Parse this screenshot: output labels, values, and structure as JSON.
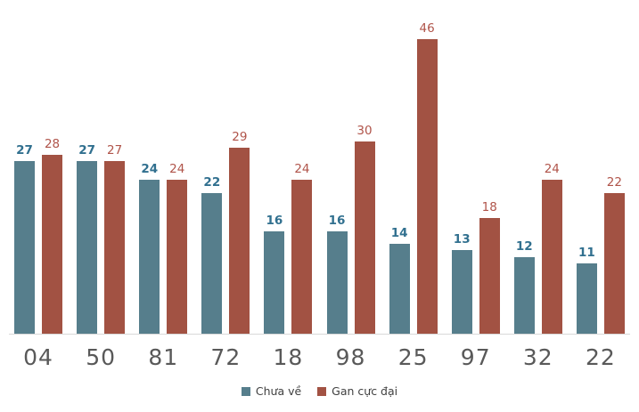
{
  "chart_data": {
    "type": "bar",
    "title": "",
    "xlabel": "",
    "ylabel": "",
    "categories": [
      "04",
      "50",
      "81",
      "72",
      "18",
      "98",
      "25",
      "97",
      "32",
      "22"
    ],
    "series": [
      {
        "name": "Chưa về",
        "bar_color": "#567E8C",
        "label_color": "#31708F",
        "values": [
          27,
          27,
          24,
          22,
          16,
          16,
          14,
          13,
          12,
          11
        ]
      },
      {
        "name": "Gan cực đại",
        "bar_color": "#A25243",
        "label_color": "#B0544A",
        "values": [
          28,
          27,
          24,
          29,
          24,
          30,
          46,
          18,
          24,
          22
        ]
      }
    ],
    "ylim": [
      0,
      46
    ],
    "grid": false,
    "axis_line_color": "#d9d9d9",
    "category_label_color": "#595959",
    "legend_position": "bottom",
    "legend": [
      "Chưa về",
      "Gan cực đại"
    ]
  }
}
